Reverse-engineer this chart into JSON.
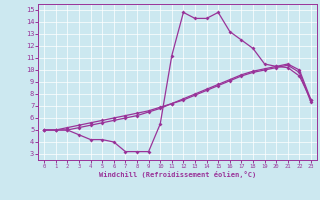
{
  "xlabel": "Windchill (Refroidissement éolien,°C)",
  "bg_color": "#cce8f0",
  "line_color": "#993399",
  "xlim": [
    -0.5,
    23.5
  ],
  "ylim": [
    2.5,
    15.5
  ],
  "xticks": [
    0,
    1,
    2,
    3,
    4,
    5,
    6,
    7,
    8,
    9,
    10,
    11,
    12,
    13,
    14,
    15,
    16,
    17,
    18,
    19,
    20,
    21,
    22,
    23
  ],
  "yticks": [
    3,
    4,
    5,
    6,
    7,
    8,
    9,
    10,
    11,
    12,
    13,
    14,
    15
  ],
  "curve1_x": [
    0,
    1,
    2,
    3,
    4,
    5,
    6,
    7,
    8,
    9,
    10,
    11,
    12,
    13,
    14,
    15,
    16,
    17,
    18,
    19,
    20,
    21,
    22,
    23
  ],
  "curve1_y": [
    5.0,
    5.0,
    5.0,
    4.6,
    4.2,
    4.2,
    4.0,
    3.2,
    3.2,
    3.2,
    5.5,
    11.2,
    14.8,
    14.3,
    14.3,
    14.8,
    13.2,
    12.5,
    11.8,
    10.5,
    10.3,
    10.2,
    9.5,
    7.5
  ],
  "curve2_x": [
    0,
    1,
    2,
    3,
    4,
    5,
    6,
    7,
    8,
    9,
    10,
    11,
    12,
    13,
    14,
    15,
    16,
    17,
    18,
    19,
    20,
    21,
    22,
    23
  ],
  "curve2_y": [
    5.0,
    5.0,
    5.2,
    5.4,
    5.6,
    5.8,
    6.0,
    6.2,
    6.4,
    6.6,
    6.9,
    7.2,
    7.6,
    8.0,
    8.4,
    8.8,
    9.2,
    9.6,
    9.9,
    10.1,
    10.3,
    10.5,
    10.0,
    7.5
  ],
  "curve3_x": [
    0,
    1,
    2,
    3,
    4,
    5,
    6,
    7,
    8,
    9,
    10,
    11,
    12,
    13,
    14,
    15,
    16,
    17,
    18,
    19,
    20,
    21,
    22,
    23
  ],
  "curve3_y": [
    5.0,
    5.0,
    5.0,
    5.2,
    5.4,
    5.6,
    5.8,
    6.0,
    6.2,
    6.5,
    6.8,
    7.2,
    7.5,
    7.9,
    8.3,
    8.7,
    9.1,
    9.5,
    9.8,
    10.0,
    10.2,
    10.4,
    9.8,
    7.3
  ]
}
